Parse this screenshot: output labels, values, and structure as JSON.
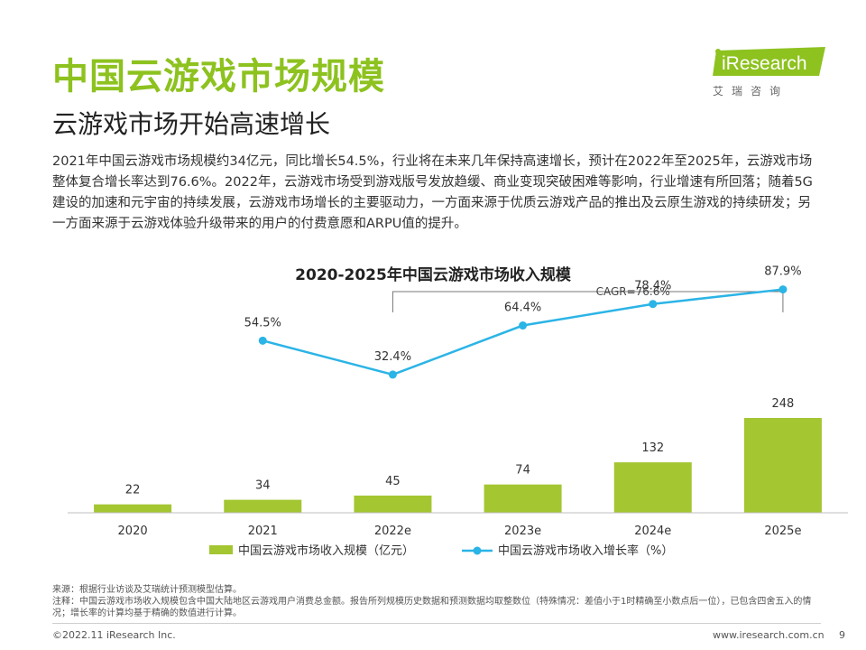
{
  "header": {
    "title": "中国云游戏市场规模",
    "subtitle": "云游戏市场开始高速增长"
  },
  "logo": {
    "name": "iResearch",
    "cn": "艾瑞咨询",
    "accent": "#8dc21f"
  },
  "body": {
    "text": "2021年中国云游戏市场规模约34亿元，同比增长54.5%，行业将在未来几年保持高速增长，预计在2022年至2025年，云游戏市场整体复合增长率达到76.6%。2022年，云游戏市场受到游戏版号发放趋缓、商业变现突破困难等影响，行业增速有所回落；随着5G建设的加速和元宇宙的持续发展，云游戏市场增长的主要驱动力，一方面来源于优质云游戏产品的推出及云原生游戏的持续研发；另一方面来源于云游戏体验升级带来的用户的付费意愿和ARPU值的提升。"
  },
  "chart_data": {
    "type": "bar",
    "title": "2020-2025年中国云游戏市场收入规模",
    "annotation": "CAGR=76.6%",
    "categories": [
      "2020",
      "2021",
      "2022e",
      "2023e",
      "2024e",
      "2025e"
    ],
    "series": [
      {
        "name": "中国云游戏市场收入规模（亿元）",
        "type": "bar",
        "color": "#a3c631",
        "values": [
          22,
          34,
          45,
          74,
          132,
          248
        ],
        "labels": [
          "22",
          "34",
          "45",
          "74",
          "132",
          "248"
        ]
      },
      {
        "name": "中国云游戏市场收入增长率（%）",
        "type": "line",
        "color": "#2bb4e6",
        "values": [
          null,
          54.5,
          32.4,
          64.4,
          78.4,
          87.9
        ],
        "labels": [
          "",
          "54.5%",
          "32.4%",
          "64.4%",
          "78.4%",
          "87.9%"
        ]
      }
    ],
    "ylim": [
      0,
      248
    ],
    "line_ylim": [
      0,
      100
    ],
    "legend_position": "bottom",
    "grid": false
  },
  "footnote": {
    "line1": "来源：根据行业访谈及艾瑞统计预测模型估算。",
    "line2": "注释：中国云游戏市场收入规模包含中国大陆地区云游戏用户消费总金额。报告所列规模历史数据和预测数据均取整数位（特殊情况：差值小于1时精确至小数点后一位），已包含四舍五入的情况；增长率的计算均基于精确的数值进行计算。"
  },
  "footer": {
    "copyright": "©2022.11 iResearch Inc.",
    "website": "www.iresearch.com.cn",
    "page": "9"
  }
}
